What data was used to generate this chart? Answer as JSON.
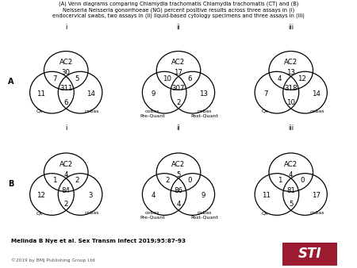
{
  "title": "(A) Venn diagrams comparing Chlamydia trachomatis Chlamydia trachomatis (CT) and (B)\nNeisseria Neisseria gonorrhoeae (NG) percent positive results across three assays in (i)\nendocervical swabs, two assays in (ii) liquid-based cytology specimens and three assays in (iii)",
  "row_labels": [
    "A",
    "B"
  ],
  "col_labels": [
    "i",
    "ii",
    "iii"
  ],
  "citation": "Melinda B Nye et al. Sex Transm Infect 2019;95:87-93",
  "copyright": "©2019 by BMJ Publishing Group Ltd",
  "sti_color": "#9B1B30",
  "diagrams": [
    {
      "row": 0,
      "col": 0,
      "top_label": "AC2",
      "top_val": "30",
      "left_label": "Qx",
      "right_label": "cobas",
      "v_tl": "7",
      "v_tr": "5",
      "v_center": "311",
      "v_bl": "11",
      "v_bm": "6",
      "v_br": "14"
    },
    {
      "row": 0,
      "col": 1,
      "top_label": "AC2",
      "top_val": "17",
      "left_label": "cobas\nPre-Quant",
      "right_label": "cobas\nPost-Quant",
      "v_tl": "10",
      "v_tr": "6",
      "v_center": "307",
      "v_bl": "9",
      "v_bm": "2",
      "v_br": "13"
    },
    {
      "row": 0,
      "col": 2,
      "top_label": "AC2",
      "top_val": "13",
      "left_label": "Qx",
      "right_label": "cobas",
      "v_tl": "4",
      "v_tr": "12",
      "v_center": "318",
      "v_bl": "7",
      "v_bm": "10",
      "v_br": "14"
    },
    {
      "row": 1,
      "col": 0,
      "top_label": "AC2",
      "top_val": "4",
      "left_label": "Qx",
      "right_label": "cobas",
      "v_tl": "1",
      "v_tr": "2",
      "v_center": "84",
      "v_bl": "12",
      "v_bm": "2",
      "v_br": "3"
    },
    {
      "row": 1,
      "col": 1,
      "top_label": "AC2",
      "top_val": "5",
      "left_label": "cobas\nPre-Quant",
      "right_label": "cobas\nPost-Quant",
      "v_tl": "2",
      "v_tr": "0",
      "v_center": "86",
      "v_bl": "4",
      "v_bm": "4",
      "v_br": "9"
    },
    {
      "row": 1,
      "col": 2,
      "top_label": "AC2",
      "top_val": "4",
      "left_label": "Qx",
      "right_label": "cobas",
      "v_tl": "1",
      "v_tr": "0",
      "v_center": "81",
      "v_bl": "11",
      "v_bm": "5",
      "v_br": "17"
    }
  ]
}
